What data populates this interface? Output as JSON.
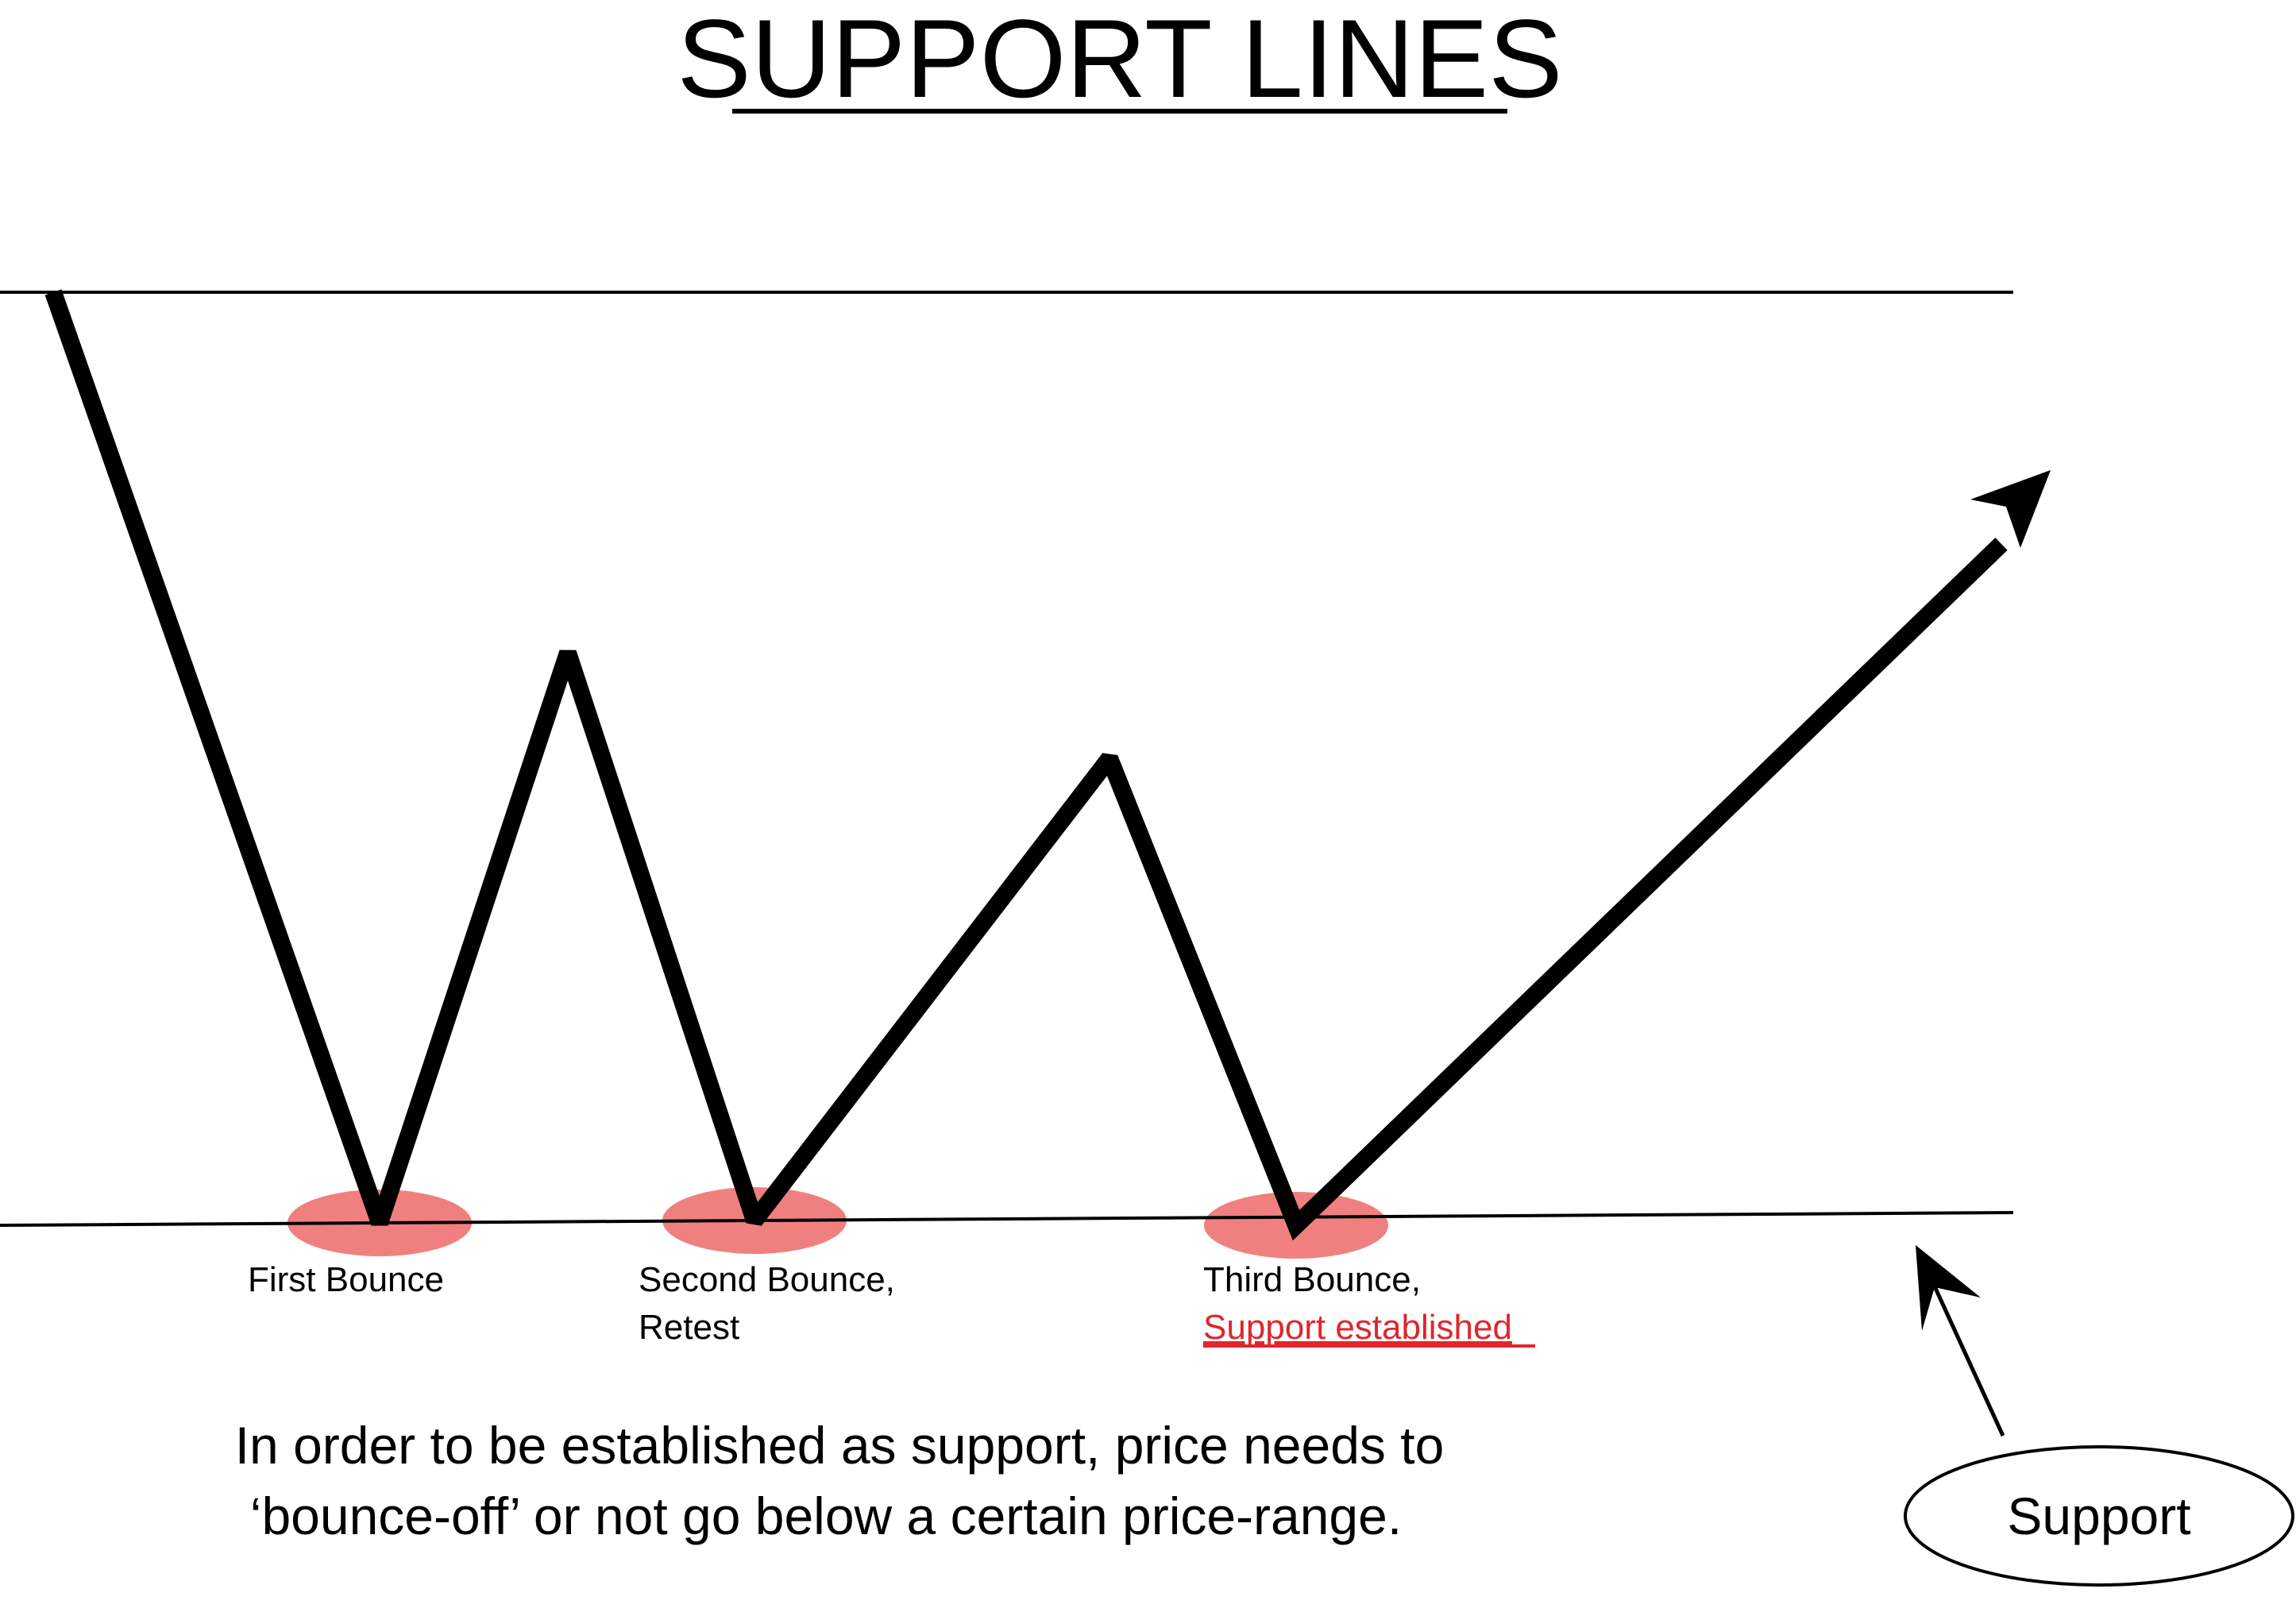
{
  "title": "SUPPORT LINES",
  "bounces": [
    {
      "line1": "First Bounce",
      "line2": ""
    },
    {
      "line1": "Second Bounce,",
      "line2": "Retest"
    },
    {
      "line1": "Third Bounce,",
      "line2": "Support established"
    }
  ],
  "caption": {
    "line1": "In order to be established as support, price needs to",
    "line2": "‘bounce-off’ or not go below a certain price-range."
  },
  "callout": {
    "label": "Support"
  },
  "colors": {
    "ink": "#000000",
    "highlight": "#f08080",
    "emphasis": "#e0262c"
  }
}
